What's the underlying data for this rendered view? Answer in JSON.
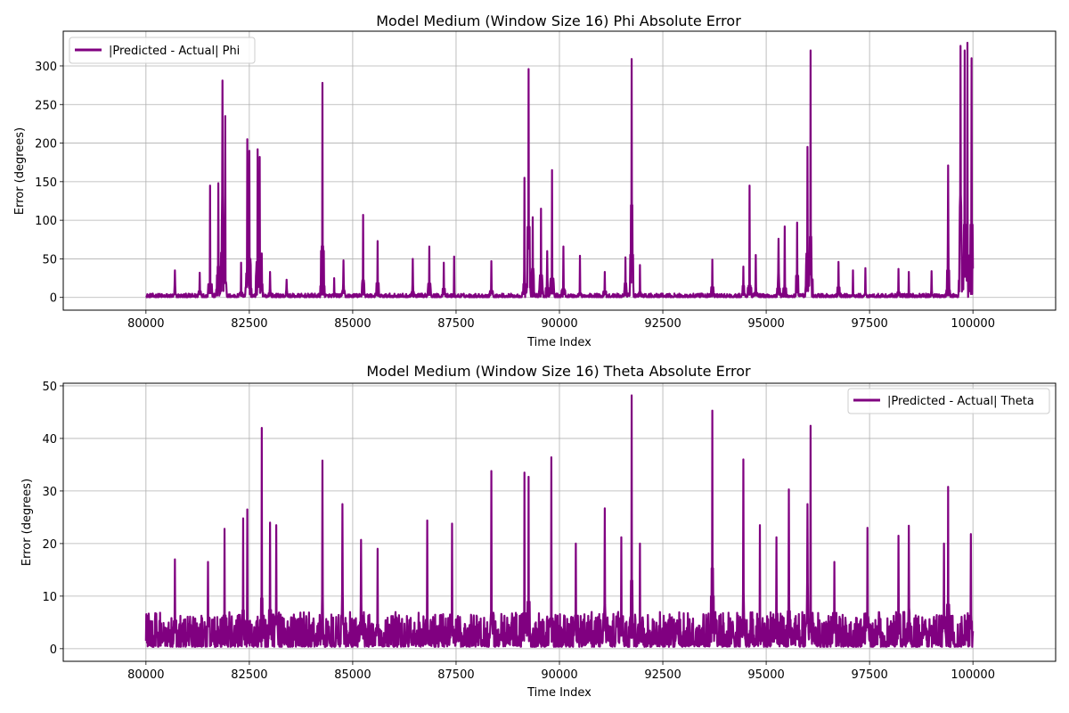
{
  "chart_data": [
    {
      "type": "line",
      "title": "Model Medium (Window Size 16) Phi Absolute Error",
      "xlabel": "Time Index",
      "ylabel": "Error (degrees)",
      "xlim": [
        78000,
        102000
      ],
      "ylim": [
        -16.5,
        345
      ],
      "xticks": [
        80000,
        82500,
        85000,
        87500,
        90000,
        92500,
        95000,
        97500,
        100000
      ],
      "xtick_labels": [
        "80000",
        "82500",
        "85000",
        "87500",
        "90000",
        "92500",
        "95000",
        "97500",
        "100000"
      ],
      "yticks": [
        0,
        50,
        100,
        150,
        200,
        250,
        300
      ],
      "ytick_labels": [
        "0",
        "50",
        "100",
        "150",
        "200",
        "250",
        "300"
      ],
      "grid": true,
      "legend_position": "upper-left",
      "color": "#800080",
      "series": [
        {
          "name": "|Predicted - Actual| Phi",
          "baseline": 5,
          "x_range": [
            80000,
            100000
          ],
          "spikes": [
            [
              80700,
              35
            ],
            [
              81300,
              32
            ],
            [
              81550,
              145
            ],
            [
              81750,
              148
            ],
            [
              81850,
              281
            ],
            [
              81920,
              235
            ],
            [
              82300,
              45
            ],
            [
              82450,
              205
            ],
            [
              82500,
              190
            ],
            [
              82700,
              192
            ],
            [
              82750,
              182
            ],
            [
              82800,
              57
            ],
            [
              83000,
              33
            ],
            [
              83400,
              23
            ],
            [
              84270,
              278
            ],
            [
              84550,
              25
            ],
            [
              84780,
              48
            ],
            [
              85250,
              107
            ],
            [
              85600,
              73
            ],
            [
              86450,
              50
            ],
            [
              86850,
              66
            ],
            [
              87200,
              45
            ],
            [
              87450,
              53
            ],
            [
              88350,
              47
            ],
            [
              89150,
              155
            ],
            [
              89250,
              296
            ],
            [
              89350,
              104
            ],
            [
              89550,
              115
            ],
            [
              89700,
              60
            ],
            [
              89820,
              165
            ],
            [
              90100,
              66
            ],
            [
              90500,
              54
            ],
            [
              91100,
              33
            ],
            [
              91600,
              52
            ],
            [
              91750,
              309
            ],
            [
              91950,
              42
            ],
            [
              93700,
              49
            ],
            [
              94450,
              40
            ],
            [
              94600,
              145
            ],
            [
              94750,
              55
            ],
            [
              95300,
              76
            ],
            [
              95450,
              92
            ],
            [
              95750,
              97
            ],
            [
              96000,
              195
            ],
            [
              96070,
              320
            ],
            [
              96750,
              46
            ],
            [
              97100,
              35
            ],
            [
              97400,
              38
            ],
            [
              98200,
              37
            ],
            [
              98450,
              33
            ],
            [
              99000,
              34
            ],
            [
              99400,
              171
            ],
            [
              99700,
              326
            ],
            [
              99800,
              320
            ],
            [
              99870,
              330
            ],
            [
              99970,
              310
            ]
          ]
        }
      ]
    },
    {
      "type": "line",
      "title": "Model Medium (Window Size 16) Theta Absolute Error",
      "xlabel": "Time Index",
      "ylabel": "Error (degrees)",
      "xlim": [
        78000,
        102000
      ],
      "ylim": [
        -2.4,
        50.5
      ],
      "xticks": [
        80000,
        82500,
        85000,
        87500,
        90000,
        92500,
        95000,
        97500,
        100000
      ],
      "xtick_labels": [
        "80000",
        "82500",
        "85000",
        "87500",
        "90000",
        "92500",
        "95000",
        "97500",
        "100000"
      ],
      "yticks": [
        0,
        10,
        20,
        30,
        40,
        50
      ],
      "ytick_labels": [
        "0",
        "10",
        "20",
        "30",
        "40",
        "50"
      ],
      "grid": true,
      "legend_position": "upper-right",
      "color": "#800080",
      "series": [
        {
          "name": "|Predicted - Actual| Theta",
          "baseline": 7,
          "x_range": [
            80000,
            100000
          ],
          "spikes": [
            [
              80700,
              17
            ],
            [
              81500,
              16.5
            ],
            [
              81900,
              22.8
            ],
            [
              82350,
              24.8
            ],
            [
              82450,
              26.5
            ],
            [
              82800,
              42
            ],
            [
              83000,
              24
            ],
            [
              83150,
              23.5
            ],
            [
              84270,
              35.8
            ],
            [
              84750,
              27.5
            ],
            [
              85200,
              20.7
            ],
            [
              85600,
              19
            ],
            [
              86800,
              24.4
            ],
            [
              87400,
              23.8
            ],
            [
              88350,
              33.8
            ],
            [
              89150,
              33.5
            ],
            [
              89250,
              32.7
            ],
            [
              89800,
              36.4
            ],
            [
              90400,
              20
            ],
            [
              91100,
              26.7
            ],
            [
              91500,
              21.2
            ],
            [
              91750,
              48.2
            ],
            [
              91950,
              20
            ],
            [
              93700,
              45.3
            ],
            [
              94450,
              36
            ],
            [
              94850,
              23.5
            ],
            [
              95250,
              21.2
            ],
            [
              95550,
              30.3
            ],
            [
              96000,
              27.5
            ],
            [
              96070,
              42.4
            ],
            [
              96650,
              16.5
            ],
            [
              97450,
              23
            ],
            [
              98200,
              21.5
            ],
            [
              98450,
              23.4
            ],
            [
              99300,
              20
            ],
            [
              99400,
              30.8
            ],
            [
              99950,
              21.8
            ]
          ]
        }
      ]
    }
  ]
}
